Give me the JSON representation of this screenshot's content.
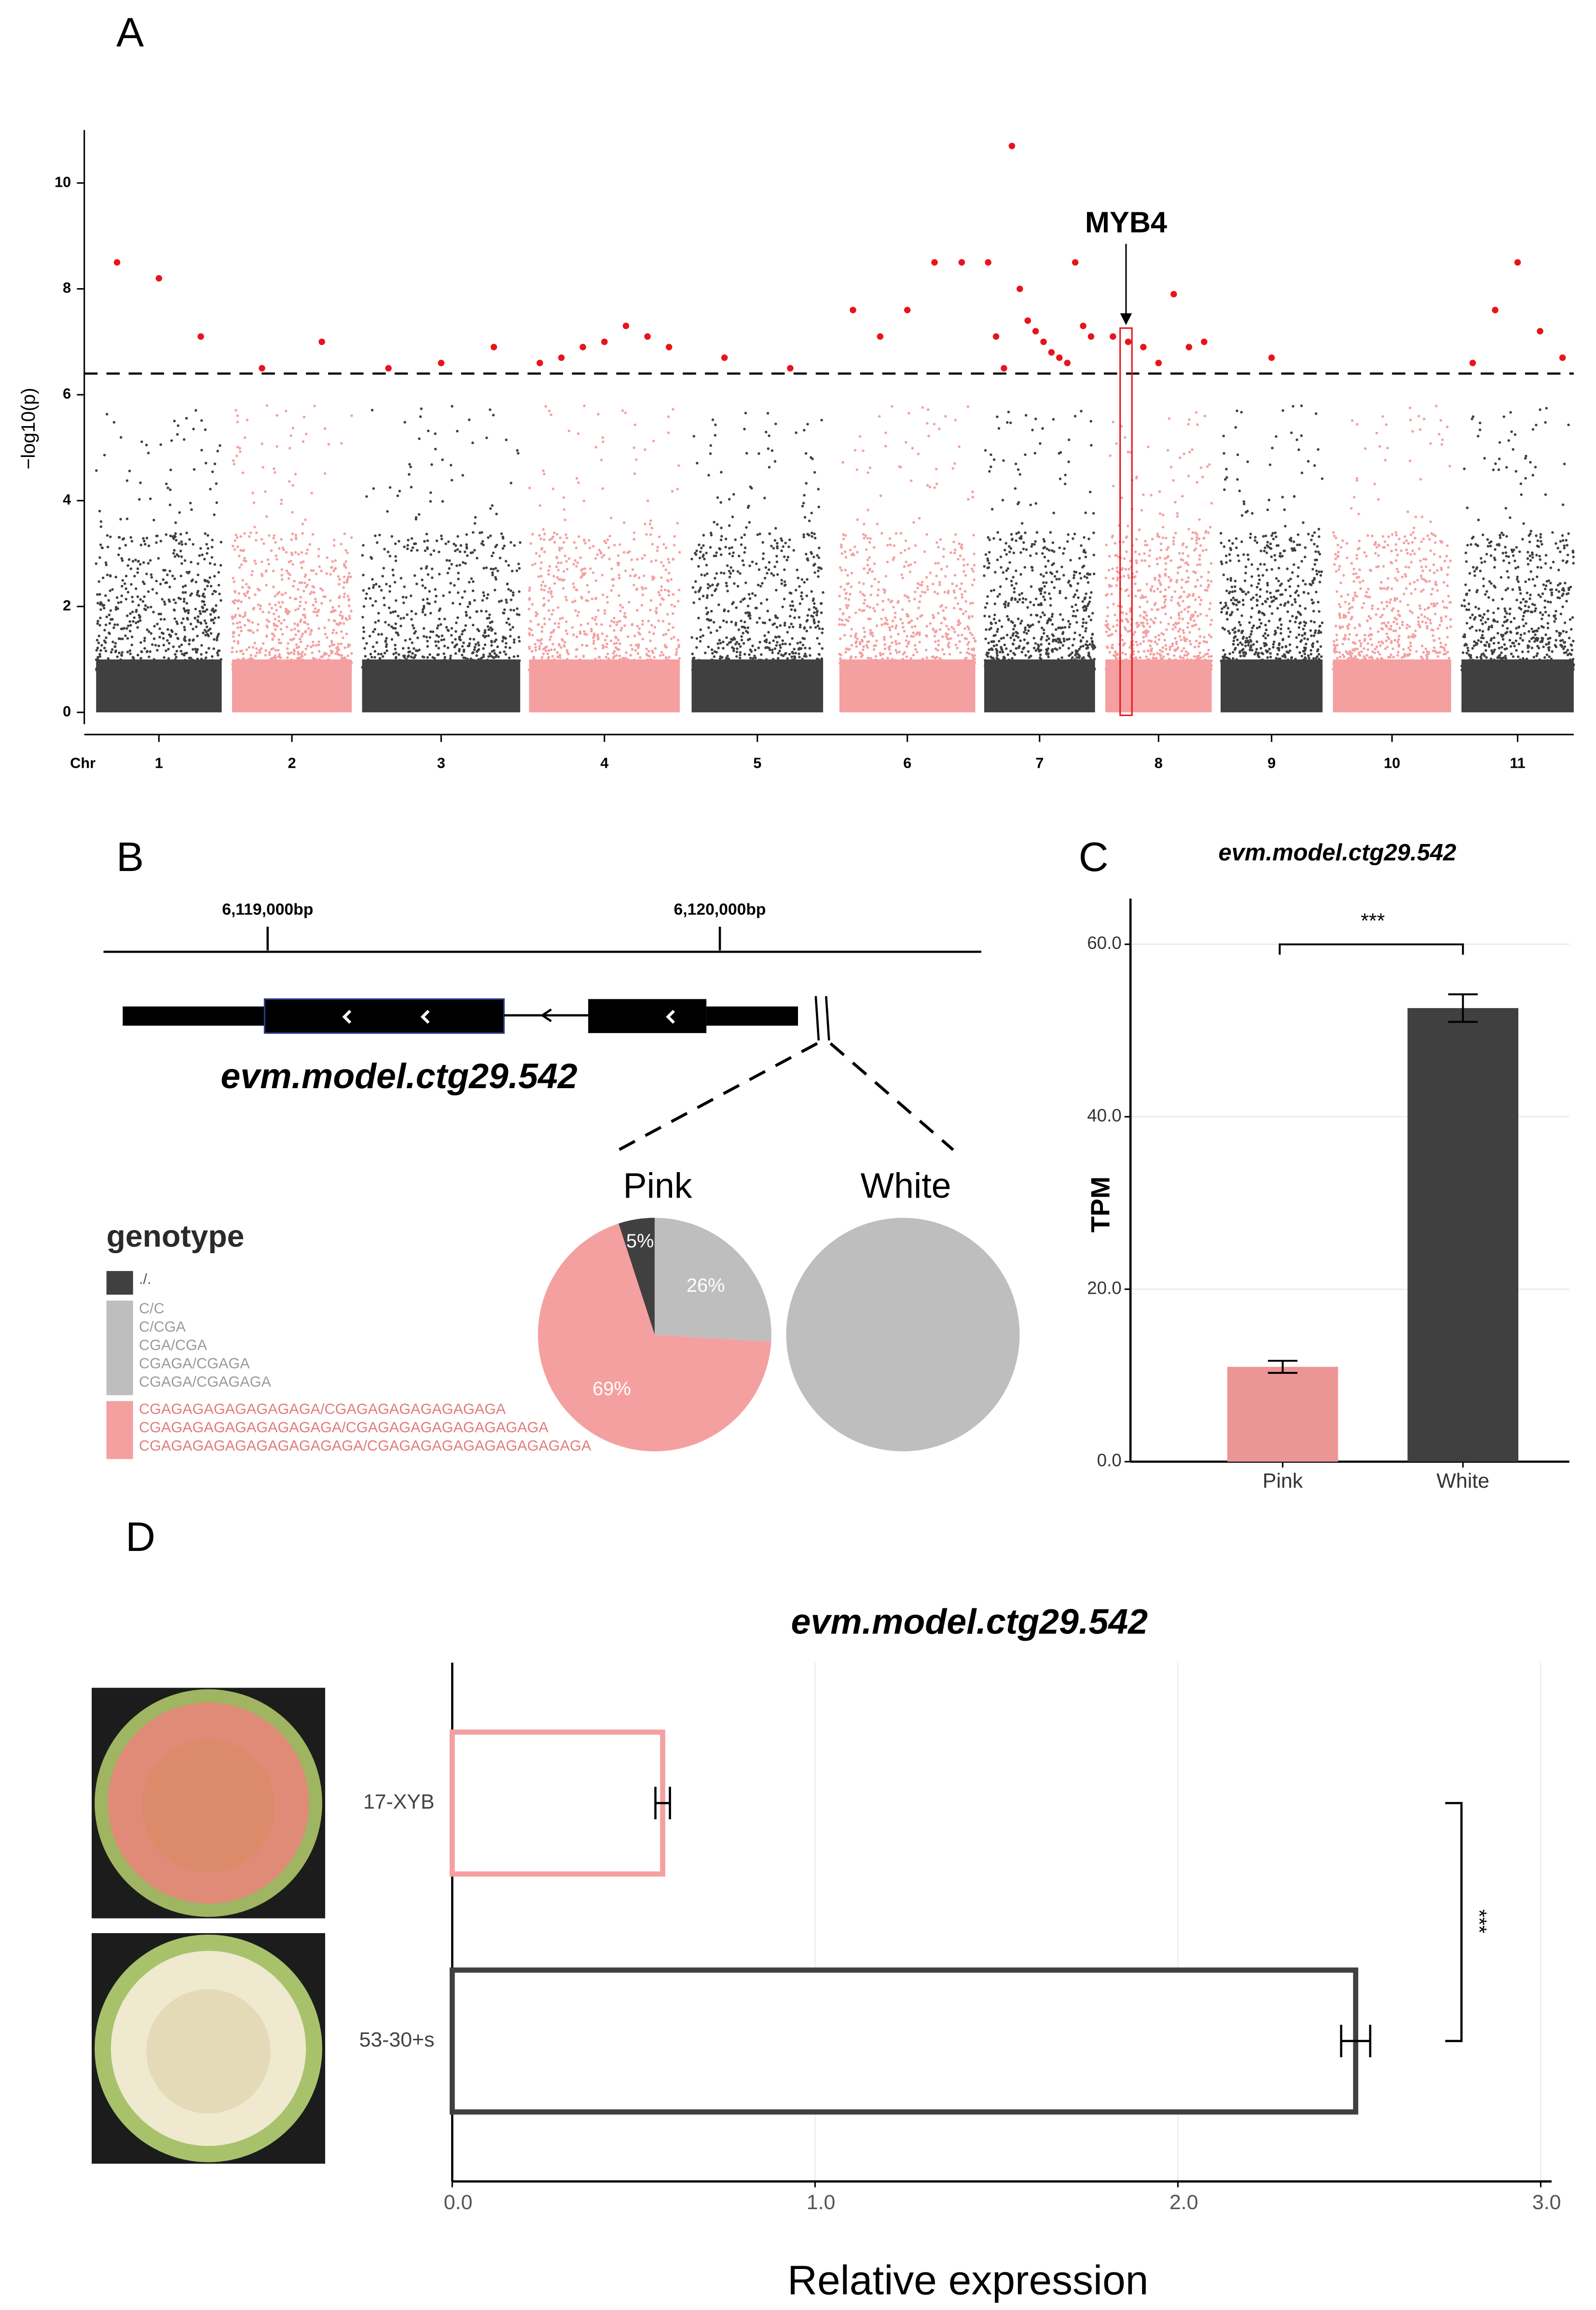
{
  "chart_data": [
    {
      "type": "manhattan",
      "label": "A",
      "ylabel": "−log10(p)",
      "xlabel": "Chr",
      "categories": [
        "1",
        "2",
        "3",
        "4",
        "5",
        "6",
        "7",
        "8",
        "9",
        "10",
        "11"
      ],
      "colors": [
        "#404040",
        "#f4a0a0",
        "#404040",
        "#f4a0a0",
        "#404040",
        "#f4a0a0",
        "#404040",
        "#f4a0a0",
        "#404040",
        "#f4a0a0",
        "#404040"
      ],
      "ylim": [
        0,
        11
      ],
      "yticks": [
        0,
        2,
        4,
        6,
        8,
        10
      ],
      "threshold": 6.4,
      "significant_color": "#e8141b",
      "significant_values": [
        [
          8.5,
          8.2,
          7.1
        ],
        [
          6.5,
          7.0
        ],
        [
          6.5,
          6.6,
          6.9
        ],
        [
          6.6,
          6.7,
          6.9,
          7.0,
          7.3,
          7.1,
          6.9
        ],
        [
          6.7,
          6.5
        ],
        [
          7.6,
          7.1,
          7.6,
          8.5,
          8.5
        ],
        [
          8.5,
          7.1,
          6.5,
          10.7,
          8.0,
          7.4,
          7.2,
          7.0,
          6.8,
          6.7,
          6.6,
          8.5,
          7.3,
          7.1
        ],
        [
          7.1,
          7.0,
          6.9,
          6.6,
          7.9,
          6.9,
          7.0
        ],
        [
          6.7
        ],
        [],
        [
          6.6,
          7.6,
          8.5,
          7.2,
          6.7
        ]
      ],
      "annotation": "MYB4"
    },
    {
      "type": "pie",
      "label": "B",
      "gene": "evm.model.ctg29.542",
      "xlim": [
        6118637,
        6120578
      ],
      "xticks": [
        {
          "value": 6119000,
          "label": "6,119,000bp"
        },
        {
          "value": 6120000,
          "label": "6,120,000bp"
        }
      ],
      "legend_title": "genotype",
      "categories": [
        [
          "./."
        ],
        [
          "C/C",
          "C/CGA",
          "CGA/CGA",
          "CGAGA/CGAGA",
          "CGAGA/CGAGAGA"
        ],
        [
          "CGAGAGAGAGAGAGAGA/CGAGAGAGAGAGAGAGA",
          "CGAGAGAGAGAGAGAGAGA/CGAGAGAGAGAGAGAGAGA",
          "CGAGAGAGAGAGAGAGAGAGA/CGAGAGAGAGAGAGAGAGAGA"
        ]
      ],
      "colors": [
        "#404040",
        "#bebebe",
        "#f4a0a0"
      ],
      "pies": [
        {
          "name": "Pink",
          "values": [
            5,
            26,
            69
          ],
          "value_labels": [
            "5%",
            "26%",
            "69%"
          ]
        },
        {
          "name": "White",
          "values": [
            0,
            100,
            0
          ]
        }
      ]
    },
    {
      "type": "bar",
      "label": "C",
      "title": "evm.model.ctg29.542",
      "ylabel": "TPM",
      "categories": [
        "Pink",
        "White"
      ],
      "values": [
        11.0,
        52.6
      ],
      "errors": [
        0.7,
        1.6
      ],
      "colors": [
        "#eb9595",
        "#404040"
      ],
      "ylim": [
        0,
        65.3
      ],
      "yticks": [
        {
          "value": 0,
          "label": "0.0"
        },
        {
          "value": 20,
          "label": "20.0"
        },
        {
          "value": 40,
          "label": "40.0"
        },
        {
          "value": 60,
          "label": "60.0"
        }
      ],
      "grid": true,
      "significance": "***"
    },
    {
      "type": "hbar",
      "label": "D",
      "title": "evm.model.ctg29.542",
      "xlabel": "Relative expression",
      "categories": [
        "17-XYB",
        "53-30+s"
      ],
      "values": [
        0.58,
        2.49
      ],
      "errors": [
        0.02,
        0.04
      ],
      "colors": [
        "#f4a0a0",
        "#404040"
      ],
      "xlim": [
        0,
        3.03
      ],
      "xticks": [
        {
          "value": 0,
          "label": "0.0"
        },
        {
          "value": 1,
          "label": "1.0"
        },
        {
          "value": 2,
          "label": "2.0"
        },
        {
          "value": 3,
          "label": "3.0"
        }
      ],
      "grid": true,
      "significance": "***"
    }
  ]
}
